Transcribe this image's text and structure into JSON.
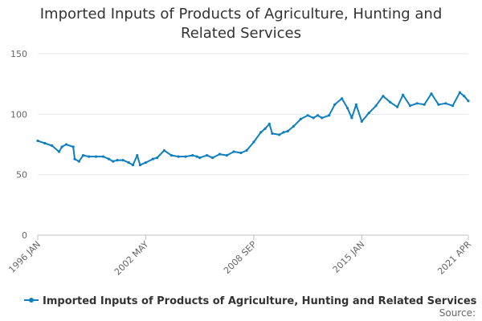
{
  "chart_data": {
    "type": "line",
    "title": "Imported Inputs of Products of Agriculture, Hunting and Related Services",
    "xlabel": "",
    "ylabel": "",
    "ylim": [
      0,
      150
    ],
    "y_ticks": [
      "0",
      "50",
      "100",
      "150"
    ],
    "x_ticks": [
      "1996 JAN",
      "2002 MAY",
      "2008 SEP",
      "2015 JAN",
      "2021 APR"
    ],
    "xlim": [
      "1996-01",
      "2021-04"
    ],
    "grid": true,
    "legend_position": "bottom",
    "color": "#0f7fbf",
    "series": [
      {
        "name": "Imported Inputs of Products of Agriculture, Hunting and Related Services",
        "x": [
          "1996-01",
          "1996-06",
          "1996-11",
          "1997-04",
          "1997-06",
          "1997-09",
          "1998-02",
          "1998-03",
          "1998-06",
          "1998-09",
          "1999-01",
          "1999-06",
          "1999-11",
          "2000-03",
          "2000-06",
          "2000-09",
          "2001-01",
          "2001-05",
          "2001-08",
          "2001-11",
          "2002-01",
          "2002-05",
          "2002-10",
          "2003-01",
          "2003-06",
          "2003-11",
          "2004-04",
          "2004-09",
          "2005-02",
          "2005-05",
          "2005-07",
          "2005-12",
          "2006-04",
          "2006-09",
          "2007-02",
          "2007-07",
          "2007-12",
          "2008-04",
          "2008-09",
          "2009-02",
          "2009-05",
          "2009-08",
          "2009-10",
          "2010-03",
          "2010-06",
          "2010-09",
          "2011-01",
          "2011-06",
          "2011-11",
          "2012-03",
          "2012-06",
          "2012-09",
          "2013-02",
          "2013-06",
          "2013-11",
          "2014-03",
          "2014-06",
          "2014-09",
          "2015-01",
          "2015-06",
          "2015-11",
          "2016-04",
          "2016-09",
          "2017-02",
          "2017-06",
          "2017-11",
          "2018-04",
          "2018-09",
          "2019-02",
          "2019-07",
          "2019-12",
          "2020-05",
          "2020-10",
          "2021-01",
          "2021-04"
        ],
        "y": [
          78,
          76,
          74,
          69,
          73,
          75,
          73,
          63,
          61,
          66,
          65,
          65,
          65,
          63,
          61,
          62,
          62,
          60,
          58,
          66,
          58,
          60,
          63,
          64,
          70,
          66,
          65,
          65,
          66,
          65,
          64,
          66,
          64,
          67,
          66,
          69,
          68,
          70,
          77,
          85,
          88,
          92,
          84,
          83,
          85,
          86,
          90,
          96,
          99,
          97,
          99,
          97,
          99,
          108,
          113,
          105,
          97,
          108,
          94,
          101,
          107,
          115,
          110,
          106,
          116,
          107,
          109,
          108,
          117,
          108,
          109,
          107,
          118,
          115,
          111
        ]
      }
    ]
  },
  "legend": {
    "label": "Imported Inputs of Products of Agriculture, Hunting and Related Services"
  },
  "source_label": "Source:"
}
